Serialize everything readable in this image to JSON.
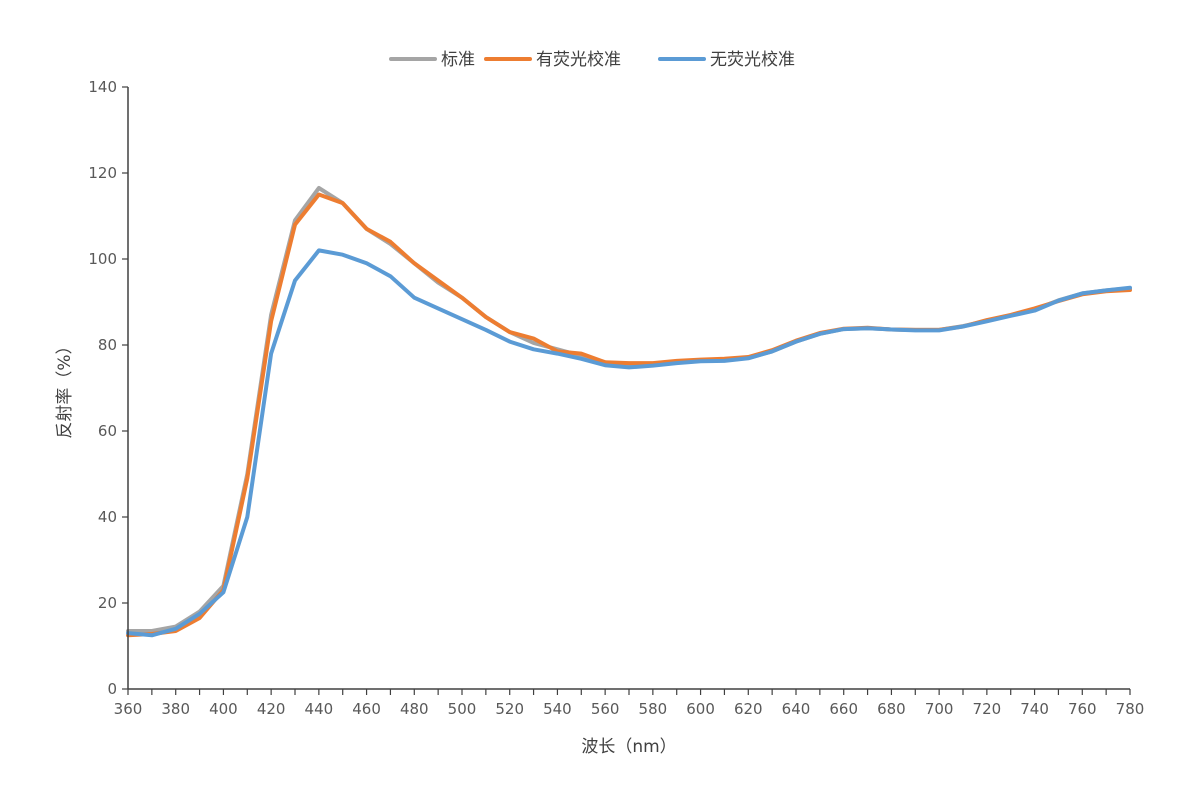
{
  "chart_data": {
    "type": "line",
    "title": "",
    "xlabel": "波长（nm）",
    "ylabel": "反射率（%）",
    "xlim": [
      360,
      780
    ],
    "ylim": [
      0,
      140
    ],
    "x_ticks": [
      360,
      380,
      400,
      420,
      440,
      460,
      480,
      500,
      520,
      540,
      560,
      580,
      600,
      620,
      640,
      660,
      680,
      700,
      720,
      740,
      760,
      780
    ],
    "y_ticks": [
      0,
      20,
      40,
      60,
      80,
      100,
      120,
      140
    ],
    "grid": false,
    "legend_position": "top",
    "x": [
      360,
      370,
      380,
      390,
      400,
      410,
      420,
      430,
      440,
      450,
      460,
      470,
      480,
      490,
      500,
      510,
      520,
      530,
      540,
      550,
      560,
      570,
      580,
      590,
      600,
      610,
      620,
      630,
      640,
      650,
      660,
      670,
      680,
      690,
      700,
      710,
      720,
      730,
      740,
      750,
      760,
      770,
      780
    ],
    "series": [
      {
        "name": "标准",
        "color": "#A5A5A5",
        "values": [
          13.5,
          13.5,
          14.5,
          18,
          24,
          50,
          87,
          109,
          116.5,
          113,
          107,
          103.5,
          99,
          94.5,
          91,
          86.5,
          83,
          80.5,
          79,
          77.5,
          76,
          75.5,
          75.5,
          76,
          76.5,
          76.5,
          77,
          78.5,
          80.8,
          82.6,
          83.7,
          83.9,
          83.6,
          83.5,
          83.5,
          84.4,
          85.6,
          86.9,
          88.2,
          90.4,
          92,
          92.7,
          93.2
        ]
      },
      {
        "name": "有荧光校准",
        "color": "#ED7D31",
        "values": [
          12.5,
          12.8,
          13.5,
          16.5,
          23,
          49,
          85.5,
          108,
          115,
          113,
          107,
          104,
          99,
          95,
          91,
          86.5,
          83,
          81.5,
          78.5,
          78,
          76,
          75.8,
          75.8,
          76.3,
          76.6,
          76.8,
          77.2,
          78.8,
          81,
          82.8,
          83.8,
          84,
          83.6,
          83.5,
          83.5,
          84.3,
          85.8,
          87,
          88.5,
          90.2,
          91.8,
          92.5,
          92.8
        ]
      },
      {
        "name": "无荧光校准",
        "color": "#5B9BD5",
        "values": [
          13,
          12.5,
          14,
          17.5,
          22.5,
          40,
          78,
          95,
          102,
          101,
          99,
          96,
          91,
          88.5,
          86,
          83.5,
          80.8,
          79,
          78,
          76.8,
          75.3,
          74.8,
          75.2,
          75.8,
          76.2,
          76.3,
          76.9,
          78.5,
          80.8,
          82.6,
          83.7,
          83.9,
          83.6,
          83.4,
          83.4,
          84.3,
          85.5,
          86.8,
          88,
          90.3,
          92,
          92.7,
          93.3
        ]
      }
    ]
  },
  "legend": {
    "items": [
      {
        "label": "标准",
        "color": "#A5A5A5"
      },
      {
        "label": "有荧光校准",
        "color": "#ED7D31"
      },
      {
        "label": "无荧光校准",
        "color": "#5B9BD5"
      }
    ]
  },
  "axes": {
    "x_title": "波长（nm）",
    "y_title": "反射率（%）"
  }
}
